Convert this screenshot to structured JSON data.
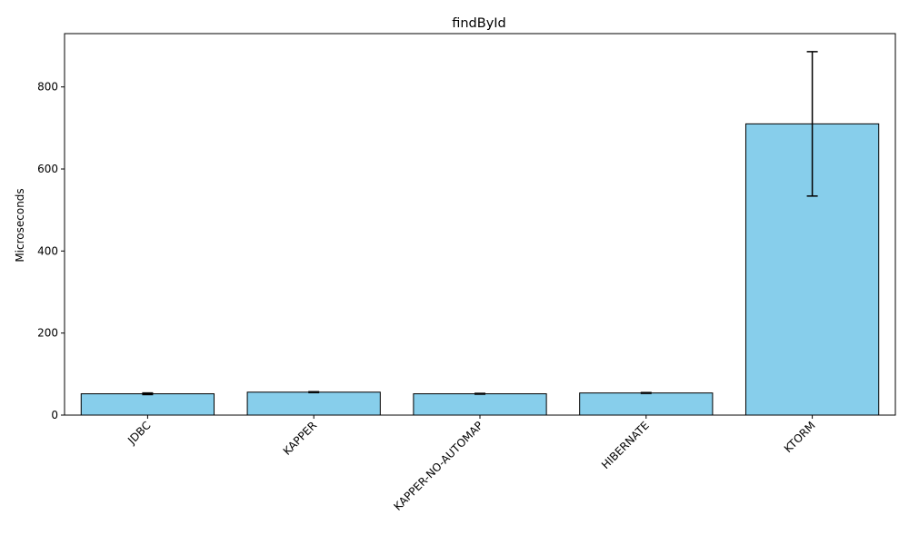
{
  "chart_data": {
    "type": "bar",
    "title": "findById",
    "xlabel": "",
    "ylabel": "Microseconds",
    "categories": [
      "JDBC",
      "KAPPER",
      "KAPPER-NO-AUTOMAP",
      "HIBERNATE",
      "KTORM"
    ],
    "values": [
      52,
      56,
      52,
      54,
      710
    ],
    "errors": [
      2,
      1,
      1,
      1,
      176
    ],
    "ylim": [
      0,
      930
    ],
    "yticks": [
      0,
      200,
      400,
      600,
      800
    ],
    "bar_color": "#87ceeb",
    "edge_color": "#000000",
    "grid": false,
    "legend": "none"
  }
}
